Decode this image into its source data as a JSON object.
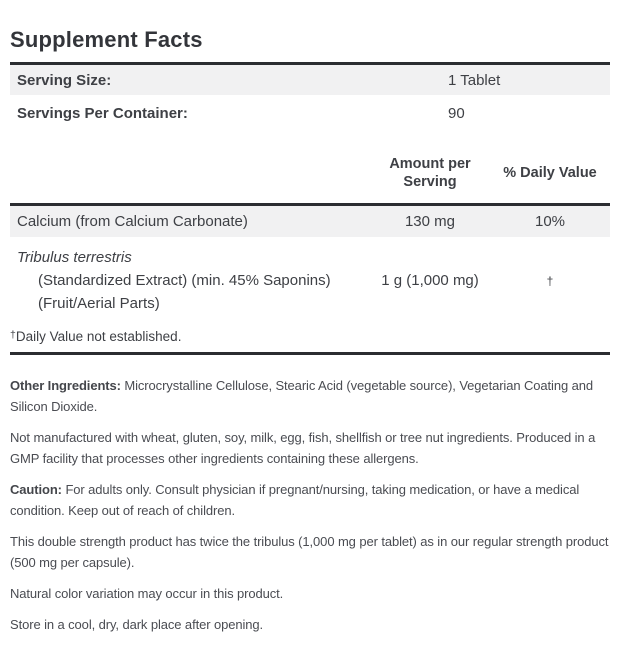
{
  "title": "Supplement Facts",
  "serving": {
    "rows": [
      {
        "label": "Serving Size:",
        "value": "1 Tablet"
      },
      {
        "label": "Servings Per Container:",
        "value": "90"
      }
    ]
  },
  "header": {
    "amount_label": "Amount per\nServing",
    "dv_label": "% Daily Value"
  },
  "nutrients": [
    {
      "name": "Calcium (from Calcium Carbonate)",
      "amount": "130 mg",
      "daily_value": "10%"
    },
    {
      "name_lines": [
        "Tribulus terrestris",
        "(Standardized Extract) (min. 45% Saponins)",
        "(Fruit/Aerial Parts)"
      ],
      "amount": "1 g (1,000 mg)",
      "daily_value": "†"
    }
  ],
  "footnote": {
    "marker": "†",
    "text": "Daily Value not established."
  },
  "paragraphs": [
    {
      "lead": "Other Ingredients: ",
      "text": "Microcrystalline Cellulose, Stearic Acid (vegetable source), Vegetarian Coating and Silicon Dioxide."
    },
    {
      "lead": "",
      "text": "Not manufactured with wheat, gluten, soy, milk, egg, fish, shellfish or tree nut ingredients. Produced in a GMP facility that processes other ingredients containing these allergens."
    },
    {
      "lead": "Caution: ",
      "text": "For adults only. Consult physician if pregnant/nursing, taking medication, or have a medical condition. Keep out of reach of children."
    },
    {
      "lead": "",
      "text": "This double strength product has twice the tribulus (1,000 mg per tablet) as in our regular strength product (500 mg per capsule)."
    },
    {
      "lead": "",
      "text": "Natural color variation may occur in this product."
    },
    {
      "lead": "",
      "text": "Store in a cool, dry, dark place after opening."
    }
  ],
  "colors": {
    "row_shade": "#f1f1f2",
    "rule": "#2b2d31",
    "table_text": "#3e4045",
    "notes_text": "#4a4c52"
  }
}
